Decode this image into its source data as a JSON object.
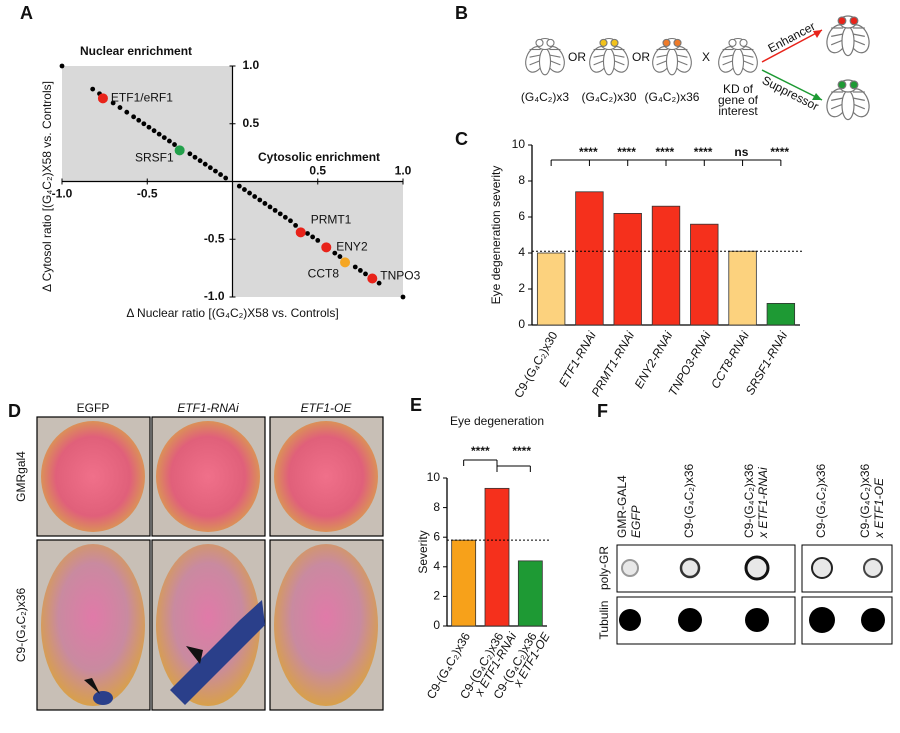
{
  "panel_labels": [
    "A",
    "B",
    "C",
    "D",
    "E",
    "F"
  ],
  "chart_data": [
    {
      "type": "scatter",
      "annotations": [
        "Nuclear enrichment",
        "Cytosolic enrichment"
      ],
      "x_label": "Δ Nuclear ratio [(G₄C₂)X58 vs. Controls]",
      "y_label": "Δ Cytosol ratio [(G₄C₂)X58 vs. Controls]",
      "xlim": [
        -1,
        1
      ],
      "ylim": [
        -1,
        1
      ],
      "xticks": [
        {
          "value": -1,
          "label": "-1.0"
        },
        {
          "value": -0.5,
          "label": "-0.5"
        },
        {
          "value": 0.5,
          "label": "0.5"
        },
        {
          "value": 1,
          "label": "1.0"
        }
      ],
      "yticks": [
        {
          "value": 1,
          "label": "1.0"
        },
        {
          "value": 0.5,
          "label": "0.5"
        },
        {
          "value": -0.5,
          "label": "-0.5"
        },
        {
          "value": -1,
          "label": "-1.0"
        }
      ],
      "shade_color": "#d9d9d9",
      "color": "#000000",
      "x": [
        -1,
        -0.82,
        -0.78,
        -0.7,
        -0.66,
        -0.62,
        -0.58,
        -0.55,
        -0.52,
        -0.49,
        -0.46,
        -0.43,
        -0.4,
        -0.37,
        -0.34,
        -0.25,
        -0.22,
        -0.19,
        -0.16,
        -0.13,
        -0.1,
        -0.07,
        -0.04,
        0.04,
        0.07,
        0.1,
        0.13,
        0.16,
        0.19,
        0.22,
        0.25,
        0.28,
        0.31,
        0.34,
        0.37,
        0.44,
        0.47,
        0.5,
        0.6,
        0.63,
        0.72,
        0.75,
        0.78,
        0.86,
        1
      ],
      "y": [
        1,
        0.8,
        0.76,
        0.68,
        0.64,
        0.6,
        0.56,
        0.53,
        0.5,
        0.47,
        0.44,
        0.41,
        0.38,
        0.35,
        0.32,
        0.24,
        0.21,
        0.18,
        0.15,
        0.12,
        0.09,
        0.06,
        0.03,
        -0.04,
        -0.07,
        -0.1,
        -0.13,
        -0.16,
        -0.19,
        -0.22,
        -0.25,
        -0.28,
        -0.31,
        -0.34,
        -0.38,
        -0.45,
        -0.48,
        -0.51,
        -0.62,
        -0.65,
        -0.74,
        -0.77,
        -0.8,
        -0.88,
        -1
      ],
      "highlights": [
        {
          "label": "ETF1/eRF1",
          "color": "#e8231a",
          "x": -0.76,
          "y": 0.72
        },
        {
          "label": "SRSF1",
          "color": "#22a04b",
          "x": -0.31,
          "y": 0.27
        },
        {
          "label": "PRMT1",
          "color": "#e8231a",
          "x": 0.4,
          "y": -0.44
        },
        {
          "label": "ENY2",
          "color": "#e8231a",
          "x": 0.55,
          "y": -0.57
        },
        {
          "label": "CCT8",
          "color": "#f5a623",
          "x": 0.66,
          "y": -0.7
        },
        {
          "label": "TNPO3",
          "color": "#e8231a",
          "x": 0.82,
          "y": -0.84
        }
      ]
    },
    {
      "type": "bar",
      "y_label": "Eye degeneration severity",
      "categories": [
        "C9-(G₄C₂)x30",
        "ETF1-RNAi",
        "PRMT1-RNAi",
        "ENY2-RNAi",
        "TNPO3-RNAi",
        "CCT8-RNAi",
        "SRSF1-RNAi"
      ],
      "values": [
        4.0,
        7.4,
        6.2,
        6.6,
        5.6,
        4.1,
        1.2
      ],
      "colors": [
        "#fcd27e",
        "#f5301c",
        "#f5301c",
        "#f5301c",
        "#f5301c",
        "#fcd27e",
        "#1e9a34"
      ],
      "ylim": [
        0,
        10
      ],
      "yticks": [
        0,
        2,
        4,
        6,
        8,
        10
      ],
      "reference_line": 4.1,
      "significance": [
        "****",
        "****",
        "****",
        "****",
        "ns",
        "****"
      ]
    },
    {
      "type": "bar",
      "title": "Eye degeneration",
      "y_label": "Severity",
      "categories": [
        "C9-(G₄C₂)x36",
        "C9-(G₄C₂)x36",
        "C9-(G₄C₂)x36"
      ],
      "category_second_lines": [
        null,
        "x ETF1-RNAi",
        "x ETF1-OE"
      ],
      "values": [
        5.8,
        9.3,
        4.4
      ],
      "colors": [
        "#f7a11a",
        "#f5301c",
        "#1e9a34"
      ],
      "ylim": [
        0,
        10
      ],
      "yticks": [
        0,
        2,
        4,
        6,
        8,
        10
      ],
      "reference_line": 5.8,
      "significance": [
        "****",
        "****"
      ]
    }
  ],
  "diagram_b": {
    "strains": [
      "(G₄C₂)x3",
      "(G₄C₂)x30",
      "(G₄C₂)x36"
    ],
    "or": [
      "OR",
      "OR"
    ],
    "cross": "X",
    "knockdown": [
      "KD of",
      "gene of",
      "interest"
    ],
    "outcomes": [
      "Enhancer",
      "Suppressor"
    ]
  },
  "images_d": {
    "columns": [
      "EGFP",
      "ETF1-RNAi",
      "ETF1-OE"
    ],
    "rows": [
      "GMRgal4",
      "C9-(G₄C₂)x36"
    ]
  },
  "blot_f": {
    "lanes": [
      [
        "GMR-GAL4",
        "EGFP"
      ],
      [
        "C9-(G₄C₂)x36"
      ],
      [
        "C9-(G₄C₂)x36",
        "x ETF1-RNAi"
      ],
      [
        "C9-(G₄C₂)x36"
      ],
      [
        "C9-(G₄C₂)x36",
        "x ETF1-OE"
      ]
    ],
    "rows": [
      "poly-GR",
      "Tubulin"
    ]
  }
}
